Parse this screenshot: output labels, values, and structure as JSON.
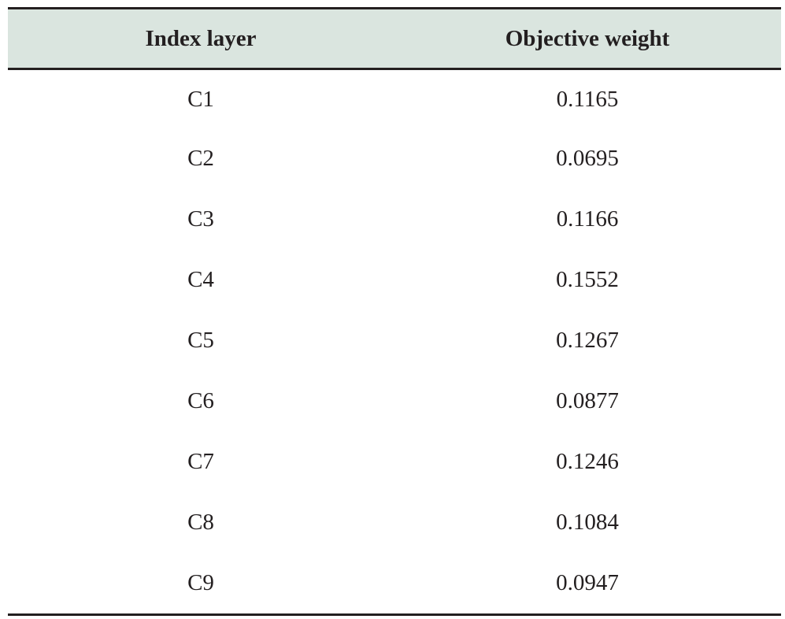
{
  "table": {
    "headers": [
      "Index layer",
      "Objective weight"
    ],
    "rows": [
      {
        "index": "C1",
        "weight": "0.1165"
      },
      {
        "index": "C2",
        "weight": "0.0695"
      },
      {
        "index": "C3",
        "weight": "0.1166"
      },
      {
        "index": "C4",
        "weight": "0.1552"
      },
      {
        "index": "C5",
        "weight": "0.1267"
      },
      {
        "index": "C6",
        "weight": "0.0877"
      },
      {
        "index": "C7",
        "weight": "0.1246"
      },
      {
        "index": "C8",
        "weight": "0.1084"
      },
      {
        "index": "C9",
        "weight": "0.0947"
      }
    ]
  },
  "colors": {
    "header_background": "#dae5df",
    "rule": "#231f20",
    "text": "#231f20"
  }
}
